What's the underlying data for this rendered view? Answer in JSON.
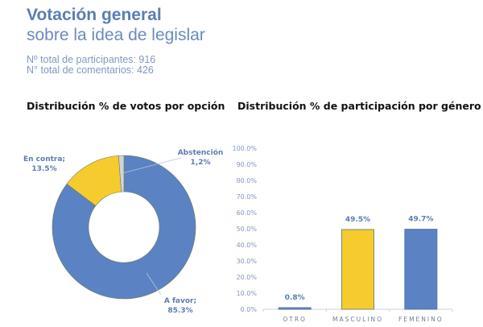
{
  "header": {
    "title": "Votación general",
    "subtitle": "sobre la idea de legislar",
    "participants": "Nº total de participantes: 916",
    "comments": "N° total de comentarios: 426"
  },
  "colors": {
    "blue": "#5b82c2",
    "yellow": "#f5cb2e",
    "gray": "#cfd4dc",
    "text_blue": "#5b7db5"
  },
  "chart_data": [
    {
      "type": "pie",
      "variant": "donut",
      "title": "Distribución % de votos por opción",
      "slices": [
        {
          "name": "A favor",
          "value": 85.3,
          "label": [
            "A favor;",
            "85.3%"
          ],
          "color": "#5b82c2"
        },
        {
          "name": "En contra",
          "value": 13.5,
          "label": [
            "En contra;",
            "13.5%"
          ],
          "color": "#f5cb2e"
        },
        {
          "name": "Abstención",
          "value": 1.2,
          "label": [
            "Abstención",
            "1,2%"
          ],
          "color": "#cfd4dc"
        }
      ]
    },
    {
      "type": "bar",
      "title": "Distribución % de participación por género",
      "categories": [
        "OTRO",
        "MASCULINO",
        "FEMENINO"
      ],
      "values": [
        0.8,
        49.5,
        49.7
      ],
      "value_labels": [
        "0.8%",
        "49.5%",
        "49.7%"
      ],
      "colors": [
        "#5b82c2",
        "#f5cb2e",
        "#5b82c2"
      ],
      "ylim": [
        0,
        100
      ],
      "yticks": [
        "0.0%",
        "10.0%",
        "20.0%",
        "30.0%",
        "40.0%",
        "50.0%",
        "60.0%",
        "70.0%",
        "80.0%",
        "90.0%",
        "100.0%"
      ],
      "grid": false
    }
  ]
}
